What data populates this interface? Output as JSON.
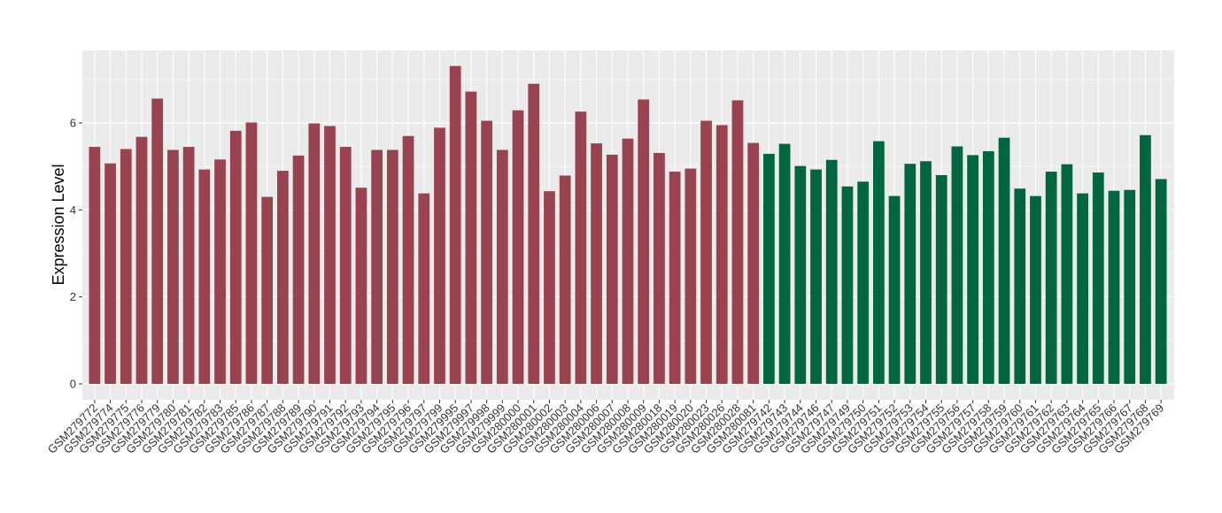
{
  "chart_data": {
    "type": "bar",
    "title": "",
    "xlabel": "",
    "ylabel": "Expression Level",
    "ylim": [
      0,
      7.65
    ],
    "yticks": [
      0,
      2,
      4,
      6
    ],
    "grid": true,
    "legend": "none",
    "colors": {
      "group1": "#9a4350",
      "group2": "#006642",
      "panel": "#ebebeb",
      "gridline": "#ffffff"
    },
    "categories": [
      "GSM279772",
      "GSM279774",
      "GSM279775",
      "GSM279776",
      "GSM279779",
      "GSM279780",
      "GSM279781",
      "GSM279782",
      "GSM279783",
      "GSM279785",
      "GSM279786",
      "GSM279787",
      "GSM279788",
      "GSM279789",
      "GSM279790",
      "GSM279791",
      "GSM279792",
      "GSM279793",
      "GSM279794",
      "GSM279795",
      "GSM279796",
      "GSM279797",
      "GSM279799",
      "GSM279995",
      "GSM279997",
      "GSM279998",
      "GSM279999",
      "GSM280000",
      "GSM280001",
      "GSM280002",
      "GSM280003",
      "GSM280004",
      "GSM280006",
      "GSM280007",
      "GSM280008",
      "GSM280009",
      "GSM280018",
      "GSM280019",
      "GSM280020",
      "GSM280023",
      "GSM280026",
      "GSM280028",
      "GSM280081",
      "GSM279742",
      "GSM279743",
      "GSM279744",
      "GSM279746",
      "GSM279747",
      "GSM279749",
      "GSM279750",
      "GSM279751",
      "GSM279752",
      "GSM279753",
      "GSM279754",
      "GSM279755",
      "GSM279756",
      "GSM279757",
      "GSM279758",
      "GSM279759",
      "GSM279760",
      "GSM279761",
      "GSM279762",
      "GSM279763",
      "GSM279764",
      "GSM279765",
      "GSM279766",
      "GSM279767",
      "GSM279768",
      "GSM279769"
    ],
    "values": [
      5.45,
      5.07,
      5.4,
      5.68,
      6.56,
      5.38,
      5.45,
      4.93,
      5.16,
      5.82,
      6.01,
      4.3,
      4.9,
      5.25,
      5.99,
      5.93,
      5.45,
      4.51,
      5.38,
      5.38,
      5.7,
      4.38,
      5.89,
      7.31,
      6.72,
      6.05,
      5.38,
      6.29,
      6.9,
      4.43,
      4.79,
      6.26,
      5.53,
      5.27,
      5.64,
      6.54,
      5.31,
      4.88,
      4.95,
      6.05,
      5.95,
      6.52,
      5.54,
      5.29,
      5.52,
      5.01,
      4.93,
      5.15,
      4.54,
      4.65,
      5.58,
      4.32,
      5.06,
      5.12,
      4.8,
      5.46,
      5.26,
      5.35,
      5.66,
      4.49,
      4.32,
      4.88,
      5.05,
      4.38,
      4.86,
      4.44,
      4.46,
      5.72,
      4.71
    ],
    "groups": [
      1,
      1,
      1,
      1,
      1,
      1,
      1,
      1,
      1,
      1,
      1,
      1,
      1,
      1,
      1,
      1,
      1,
      1,
      1,
      1,
      1,
      1,
      1,
      1,
      1,
      1,
      1,
      1,
      1,
      1,
      1,
      1,
      1,
      1,
      1,
      1,
      1,
      1,
      1,
      1,
      1,
      1,
      1,
      2,
      2,
      2,
      2,
      2,
      2,
      2,
      2,
      2,
      2,
      2,
      2,
      2,
      2,
      2,
      2,
      2,
      2,
      2,
      2,
      2,
      2,
      2,
      2,
      2,
      2
    ]
  }
}
